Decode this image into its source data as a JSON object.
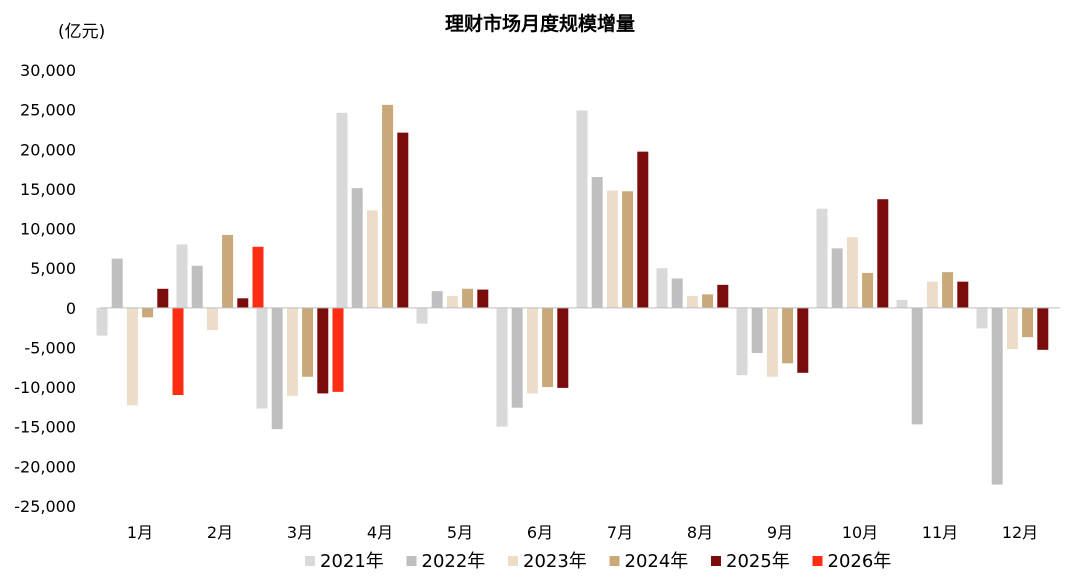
{
  "chart_data": {
    "type": "bar",
    "title": "理财市场月度规模增量",
    "unit_label": "(亿元)",
    "ylim": [
      -25000,
      30000
    ],
    "y_ticks": [
      30000,
      25000,
      20000,
      15000,
      10000,
      5000,
      0,
      -5000,
      -10000,
      -15000,
      -20000,
      -25000
    ],
    "y_tick_labels": [
      "30,000",
      "25,000",
      "20,000",
      "15,000",
      "10,000",
      "5,000",
      "0",
      "-5,000",
      "-10,000",
      "-15,000",
      "-20,000",
      "-25,000"
    ],
    "categories": [
      "1月",
      "2月",
      "3月",
      "4月",
      "5月",
      "6月",
      "7月",
      "8月",
      "9月",
      "10月",
      "11月",
      "12月"
    ],
    "legend_position": "bottom",
    "grid": false,
    "series": [
      {
        "name": "2021年",
        "color": "#d9d9d9",
        "values": [
          -3500,
          8000,
          -12700,
          24600,
          -2000,
          -15000,
          24900,
          5000,
          -8500,
          12500,
          1000,
          -2600
        ]
      },
      {
        "name": "2022年",
        "color": "#bfbfbf",
        "values": [
          6200,
          5300,
          -15300,
          15100,
          2100,
          -12600,
          16500,
          3700,
          -5700,
          7500,
          -14700,
          -22300
        ]
      },
      {
        "name": "2023年",
        "color": "#ecdcc8",
        "values": [
          -12300,
          -2800,
          -11100,
          12300,
          1500,
          -10800,
          14800,
          1500,
          -8700,
          8900,
          3300,
          -5200
        ]
      },
      {
        "name": "2024年",
        "color": "#c9a87a",
        "values": [
          -1200,
          9200,
          -8700,
          25600,
          2400,
          -10000,
          14700,
          1700,
          -7000,
          4400,
          4500,
          -3700
        ]
      },
      {
        "name": "2025年",
        "color": "#7b0c0c",
        "values": [
          2400,
          1200,
          -10800,
          22100,
          2300,
          -10100,
          19700,
          2900,
          -8200,
          13700,
          3300,
          -5300
        ]
      },
      {
        "name": "2026年",
        "color": "#ff2d12",
        "values": [
          -11000,
          7700,
          -10600,
          null,
          null,
          null,
          null,
          null,
          null,
          null,
          null,
          null
        ]
      }
    ]
  }
}
